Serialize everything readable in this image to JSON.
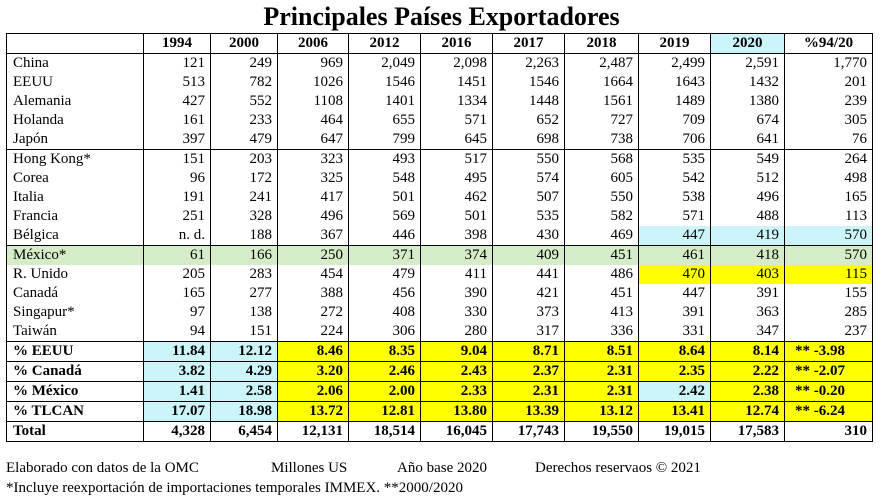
{
  "title": "Principales Países Exportadores",
  "header": [
    "",
    "1994",
    "2000",
    "2006",
    "2012",
    "2016",
    "2017",
    "2018",
    "2019",
    "2020",
    "%94/20"
  ],
  "header_highlight": {
    "2020": "#ccf5fa"
  },
  "colors": {
    "yellow": "#ffff00",
    "cyan": "#ccf5fa",
    "green": "#d4edc8"
  },
  "rows": [
    {
      "name": "China",
      "values": [
        "121",
        "249",
        "969",
        "2,049",
        "2,098",
        "2,263",
        "2,487",
        "2,499",
        "2,591",
        "1,770"
      ]
    },
    {
      "name": "EEUU",
      "values": [
        "513",
        "782",
        "1026",
        "1546",
        "1451",
        "1546",
        "1664",
        "1643",
        "1432",
        "201"
      ]
    },
    {
      "name": "Alemania",
      "values": [
        "427",
        "552",
        "1108",
        "1401",
        "1334",
        "1448",
        "1561",
        "1489",
        "1380",
        "239"
      ]
    },
    {
      "name": "Holanda",
      "values": [
        "161",
        "233",
        "464",
        "655",
        "571",
        "652",
        "727",
        "709",
        "674",
        "305"
      ]
    },
    {
      "name": "Japón",
      "values": [
        "397",
        "479",
        "647",
        "799",
        "645",
        "698",
        "738",
        "706",
        "641",
        "76"
      ]
    },
    {
      "name": "Hong Kong*",
      "values": [
        "151",
        "203",
        "323",
        "493",
        "517",
        "550",
        "568",
        "535",
        "549",
        "264"
      ],
      "sep": true
    },
    {
      "name": "Corea",
      "values": [
        "96",
        "172",
        "325",
        "548",
        "495",
        "574",
        "605",
        "542",
        "512",
        "498"
      ]
    },
    {
      "name": "Italia",
      "values": [
        "191",
        "241",
        "417",
        "501",
        "462",
        "507",
        "550",
        "538",
        "496",
        "165"
      ]
    },
    {
      "name": "Francia",
      "values": [
        "251",
        "328",
        "496",
        "569",
        "501",
        "535",
        "582",
        "571",
        "488",
        "113"
      ]
    },
    {
      "name": "Bélgica",
      "values": [
        "n. d.",
        "188",
        "367",
        "446",
        "398",
        "430",
        "469",
        "447",
        "419",
        "570"
      ],
      "hl": {
        "7": "cyan",
        "8": "cyan",
        "9": "cyan"
      }
    },
    {
      "name": "México*",
      "values": [
        "61",
        "166",
        "250",
        "371",
        "374",
        "409",
        "451",
        "461",
        "418",
        "570"
      ],
      "row_hl": "green",
      "sep": true
    },
    {
      "name": "R. Unido",
      "values": [
        "205",
        "283",
        "454",
        "479",
        "411",
        "441",
        "486",
        "470",
        "403",
        "115"
      ],
      "hl": {
        "7": "yellow",
        "8": "yellow",
        "9": "yellow"
      }
    },
    {
      "name": "Canadá",
      "values": [
        "165",
        "277",
        "388",
        "456",
        "390",
        "421",
        "451",
        "447",
        "391",
        "155"
      ]
    },
    {
      "name": "Singapur*",
      "values": [
        "97",
        "138",
        "272",
        "408",
        "330",
        "373",
        "413",
        "391",
        "363",
        "285"
      ]
    },
    {
      "name": "Taiwán",
      "values": [
        "94",
        "151",
        "224",
        "306",
        "280",
        "317",
        "336",
        "331",
        "347",
        "237"
      ]
    },
    {
      "name": "% EEUU",
      "values": [
        "11.84",
        "12.12",
        "8.46",
        "8.35",
        "9.04",
        "8.71",
        "8.51",
        "8.64",
        "8.14",
        "** -3.98"
      ],
      "bold": true,
      "sep": true,
      "hl": {
        "0": "cyan",
        "1": "cyan",
        "2": "yellow",
        "3": "yellow",
        "4": "yellow",
        "5": "yellow",
        "6": "yellow",
        "7": "yellow",
        "8": "yellow",
        "9": "yellow"
      }
    },
    {
      "name": "% Canadá",
      "values": [
        "3.82",
        "4.29",
        "3.20",
        "2.46",
        "2.43",
        "2.37",
        "2.31",
        "2.35",
        "2.22",
        "** -2.07"
      ],
      "bold": true,
      "sep": true,
      "hl": {
        "0": "cyan",
        "1": "cyan",
        "2": "yellow",
        "3": "yellow",
        "4": "yellow",
        "5": "yellow",
        "6": "yellow",
        "7": "yellow",
        "8": "yellow",
        "9": "yellow"
      }
    },
    {
      "name": "% México",
      "values": [
        "1.41",
        "2.58",
        "2.06",
        "2.00",
        "2.33",
        "2.31",
        "2.31",
        "2.42",
        "2.38",
        "** -0.20"
      ],
      "bold": true,
      "sep": true,
      "hl": {
        "0": "cyan",
        "1": "cyan",
        "2": "yellow",
        "3": "yellow",
        "4": "yellow",
        "5": "yellow",
        "6": "yellow",
        "7": "cyan",
        "8": "yellow",
        "9": "yellow"
      }
    },
    {
      "name": "% TLCAN",
      "values": [
        "17.07",
        "18.98",
        "13.72",
        "12.81",
        "13.80",
        "13.39",
        "13.12",
        "13.41",
        "12.74",
        "** -6.24"
      ],
      "bold": true,
      "sep": true,
      "hl": {
        "0": "cyan",
        "1": "cyan",
        "2": "yellow",
        "3": "yellow",
        "4": "yellow",
        "5": "yellow",
        "6": "yellow",
        "7": "yellow",
        "8": "yellow",
        "9": "yellow"
      }
    },
    {
      "name": "Total",
      "values": [
        "4,328",
        "6,454",
        "12,131",
        "18,514",
        "16,045",
        "17,743",
        "19,550",
        "19,015",
        "17,583",
        "310"
      ],
      "bold": true,
      "sep": true,
      "last": true
    }
  ],
  "footer": {
    "line1": [
      "Elaborado con datos de la OMC",
      "Millones US",
      "Año base 2020",
      "Derechos reservaos © 2021"
    ],
    "line2": "*Incluye reexportación de importaciones temporales IMMEX.  **2000/2020"
  }
}
